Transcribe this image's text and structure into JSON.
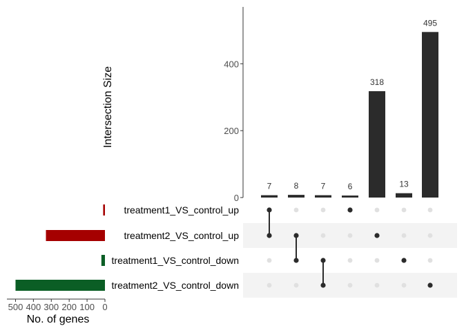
{
  "chart_data": {
    "type": "bar",
    "subtype": "upset",
    "sets": [
      {
        "name": "treatment1_VS_control_up",
        "size": 10,
        "color": "#A50000"
      },
      {
        "name": "treatment2_VS_control_up",
        "size": 330,
        "color": "#A50000"
      },
      {
        "name": "treatment1_VS_control_down",
        "size": 20,
        "color": "#0B5E25"
      },
      {
        "name": "treatment2_VS_control_down",
        "size": 500,
        "color": "#0B5E25"
      }
    ],
    "intersections": [
      {
        "sets": [
          0,
          1
        ],
        "value": 7
      },
      {
        "sets": [
          1,
          2
        ],
        "value": 8
      },
      {
        "sets": [
          2,
          3
        ],
        "value": 7
      },
      {
        "sets": [
          0
        ],
        "value": 6
      },
      {
        "sets": [
          1
        ],
        "value": 318
      },
      {
        "sets": [
          2
        ],
        "value": 13
      },
      {
        "sets": [
          3
        ],
        "value": 495
      }
    ],
    "intersection_ylabel": "Intersection Size",
    "intersection_ylim": [
      0,
      570
    ],
    "intersection_yticks": [
      0,
      200,
      400
    ],
    "set_xlabel": "No. of genes",
    "set_xlim": [
      0,
      525
    ],
    "set_xticks": [
      500,
      400,
      300,
      200,
      100,
      0
    ],
    "bar_color": "#2B2B2B",
    "dot_active_color": "#2B2B2B",
    "dot_inactive_color": "#E0E0E0",
    "stripe_color": "#F3F3F3"
  }
}
